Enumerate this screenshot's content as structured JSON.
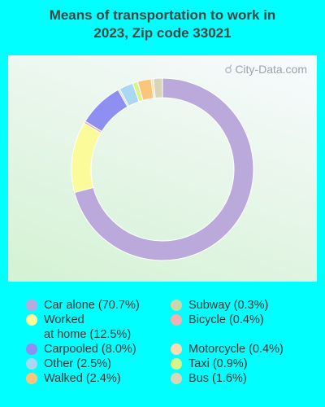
{
  "chart_data": {
    "type": "pie",
    "title": [
      "Means of transportation to work in",
      "2023, Zip code 33021"
    ],
    "watermark": "City-Data.com",
    "categories": [
      "Car alone",
      "Worked at home",
      "Carpooled",
      "Other",
      "Walked",
      "Subway",
      "Bicycle",
      "Motorcycle",
      "Taxi",
      "Bus"
    ],
    "values": [
      70.7,
      12.5,
      8.0,
      2.5,
      2.4,
      0.3,
      0.4,
      0.4,
      0.9,
      1.6
    ],
    "ring_order": [
      "Car alone",
      "Worked at home",
      "Bicycle",
      "Carpooled",
      "Subway",
      "Other",
      "Taxi",
      "Walked",
      "Motorcycle",
      "Bus"
    ],
    "colors": {
      "Car alone": "#bca9dc",
      "Worked at home": "#fbfb9a",
      "Carpooled": "#8f8ff2",
      "Other": "#aad8f2",
      "Walked": "#fcc57c",
      "Subway": "#c8d8a8",
      "Bicycle": "#f2b0b0",
      "Motorcycle": "#fbdcb0",
      "Taxi": "#d8f58a",
      "Bus": "#d8d5b8"
    },
    "legend": [
      {
        "lines": [
          "Car alone (70.7%)"
        ],
        "category": "Car alone"
      },
      {
        "lines": [
          "Worked",
          "at home (12.5%)"
        ],
        "category": "Worked at home"
      },
      {
        "lines": [
          "Carpooled (8.0%)"
        ],
        "category": "Carpooled"
      },
      {
        "lines": [
          "Other (2.5%)"
        ],
        "category": "Other"
      },
      {
        "lines": [
          "Walked (2.4%)"
        ],
        "category": "Walked"
      },
      {
        "lines": [
          "Subway (0.3%)"
        ],
        "category": "Subway"
      },
      {
        "lines": [
          "Bicycle (0.4%)"
        ],
        "category": "Bicycle"
      },
      {
        "lines": [
          "Motorcycle (0.4%)"
        ],
        "category": "Motorcycle"
      },
      {
        "lines": [
          "Taxi (0.9%)"
        ],
        "category": "Taxi"
      },
      {
        "lines": [
          "Bus (1.6%)"
        ],
        "category": "Bus"
      }
    ]
  }
}
